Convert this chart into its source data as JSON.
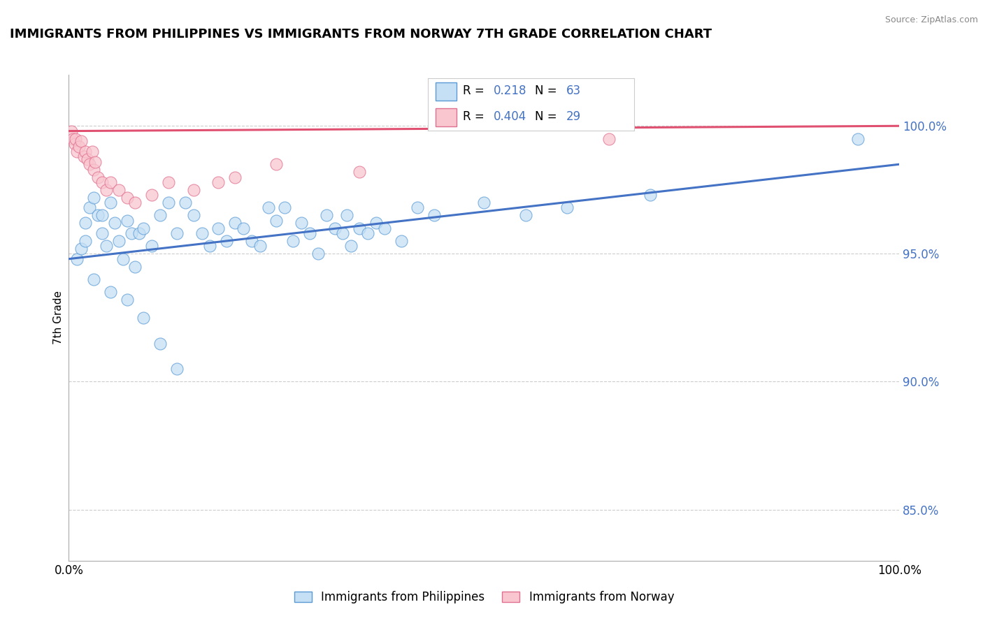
{
  "title": "IMMIGRANTS FROM PHILIPPINES VS IMMIGRANTS FROM NORWAY 7TH GRADE CORRELATION CHART",
  "source": "Source: ZipAtlas.com",
  "ylabel": "7th Grade",
  "right_yticks": [
    85.0,
    90.0,
    95.0,
    100.0
  ],
  "xlim": [
    0.0,
    100.0
  ],
  "ylim": [
    83.0,
    102.0
  ],
  "r_blue": 0.218,
  "n_blue": 63,
  "r_pink": 0.404,
  "n_pink": 29,
  "blue_color": "#c5dff5",
  "blue_edge_color": "#5b9bd5",
  "blue_line_color": "#4472c4",
  "pink_color": "#f9c6cf",
  "pink_edge_color": "#e07090",
  "pink_line_color": "#e05070",
  "legend_label_blue": "Immigrants from Philippines",
  "legend_label_pink": "Immigrants from Norway",
  "blue_scatter_x": [
    1.0,
    1.5,
    2.0,
    2.0,
    2.5,
    3.0,
    3.5,
    4.0,
    4.0,
    4.5,
    5.0,
    5.5,
    6.0,
    6.5,
    7.0,
    7.5,
    8.0,
    8.5,
    9.0,
    10.0,
    11.0,
    12.0,
    13.0,
    14.0,
    15.0,
    16.0,
    17.0,
    18.0,
    19.0,
    20.0,
    21.0,
    22.0,
    23.0,
    24.0,
    25.0,
    26.0,
    27.0,
    28.0,
    29.0,
    30.0,
    31.0,
    32.0,
    33.0,
    33.5,
    34.0,
    35.0,
    36.0,
    37.0,
    38.0,
    40.0,
    42.0,
    44.0,
    50.0,
    55.0,
    60.0,
    70.0,
    95.0,
    3.0,
    5.0,
    7.0,
    9.0,
    11.0,
    13.0
  ],
  "blue_scatter_y": [
    94.8,
    95.2,
    95.5,
    96.2,
    96.8,
    97.2,
    96.5,
    95.8,
    96.5,
    95.3,
    97.0,
    96.2,
    95.5,
    94.8,
    96.3,
    95.8,
    94.5,
    95.8,
    96.0,
    95.3,
    96.5,
    97.0,
    95.8,
    97.0,
    96.5,
    95.8,
    95.3,
    96.0,
    95.5,
    96.2,
    96.0,
    95.5,
    95.3,
    96.8,
    96.3,
    96.8,
    95.5,
    96.2,
    95.8,
    95.0,
    96.5,
    96.0,
    95.8,
    96.5,
    95.3,
    96.0,
    95.8,
    96.2,
    96.0,
    95.5,
    96.8,
    96.5,
    97.0,
    96.5,
    96.8,
    97.3,
    99.5,
    94.0,
    93.5,
    93.2,
    92.5,
    91.5,
    90.5
  ],
  "pink_scatter_x": [
    0.3,
    0.5,
    0.7,
    0.8,
    1.0,
    1.2,
    1.5,
    1.8,
    2.0,
    2.2,
    2.5,
    2.8,
    3.0,
    3.2,
    3.5,
    4.0,
    4.5,
    5.0,
    6.0,
    7.0,
    8.0,
    10.0,
    12.0,
    15.0,
    18.0,
    20.0,
    25.0,
    35.0,
    65.0
  ],
  "pink_scatter_y": [
    99.8,
    99.5,
    99.3,
    99.5,
    99.0,
    99.2,
    99.4,
    98.8,
    99.0,
    98.7,
    98.5,
    99.0,
    98.3,
    98.6,
    98.0,
    97.8,
    97.5,
    97.8,
    97.5,
    97.2,
    97.0,
    97.3,
    97.8,
    97.5,
    97.8,
    98.0,
    98.5,
    98.2,
    99.5
  ],
  "blue_trend_x0": 0.0,
  "blue_trend_y0": 94.8,
  "blue_trend_x1": 100.0,
  "blue_trend_y1": 98.5,
  "pink_trend_x0": 0.0,
  "pink_trend_y0": 99.8,
  "pink_trend_x1": 100.0,
  "pink_trend_y1": 100.0
}
